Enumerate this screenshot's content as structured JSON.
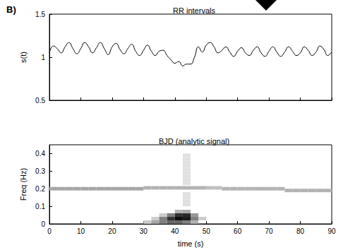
{
  "panel_label": "B)",
  "chart_data": [
    {
      "type": "line",
      "title": "RR intervals",
      "y_label": "s(t)",
      "color": "#000000",
      "x": [
        0,
        1.25,
        2.5,
        3.75,
        5,
        6.25,
        7.5,
        8.75,
        10,
        11.25,
        12.5,
        13.75,
        15,
        16.25,
        17.5,
        18.75,
        20,
        21.25,
        22.5,
        23.75,
        25,
        26.25,
        27.5,
        28.75,
        30,
        31.25,
        32.5,
        33.75,
        35,
        36.25,
        37.5,
        38.75,
        40,
        41.25,
        42.5,
        43.75,
        45,
        46.25,
        47.5,
        48.75,
        50,
        51.25,
        52.5,
        53.75,
        55,
        56.25,
        57.5,
        58.75,
        60,
        61.25,
        62.5,
        63.75,
        65,
        66.25,
        67.5,
        68.75,
        70,
        71.25,
        72.5,
        73.75,
        75,
        76.25,
        77.5,
        78.75,
        80,
        81.25,
        82.5,
        83.75,
        85,
        86.25,
        87.5,
        88.75,
        90
      ],
      "values": [
        1.05,
        1.13,
        1.1,
        1.05,
        1.12,
        1.17,
        1.1,
        1.04,
        1.1,
        1.17,
        1.12,
        1.05,
        1.11,
        1.17,
        1.1,
        1.03,
        1.12,
        1.16,
        1.09,
        1.04,
        1.1,
        1.15,
        1.07,
        1.02,
        1.08,
        1.14,
        1.07,
        1.02,
        1.07,
        1.08,
        1.02,
        0.97,
        0.93,
        0.95,
        0.9,
        0.92,
        0.92,
        1.0,
        1.12,
        1.06,
        1.14,
        1.17,
        1.12,
        1.05,
        1.08,
        1.12,
        1.06,
        1.01,
        1.07,
        1.11,
        1.05,
        1.02,
        1.08,
        1.12,
        1.05,
        1.01,
        1.07,
        1.12,
        1.06,
        1.01,
        1.06,
        1.12,
        1.07,
        1.02,
        1.05,
        1.12,
        1.08,
        1.02,
        1.06,
        1.13,
        1.09,
        1.02,
        1.06
      ],
      "xlim": [
        0,
        90
      ],
      "xticks": [
        0,
        10,
        20,
        30,
        40,
        50,
        60,
        70,
        80,
        90
      ],
      "ylim": [
        0.5,
        1.5
      ],
      "yticks": [
        0.5,
        1,
        1.5
      ],
      "tick_labels": "y"
    },
    {
      "type": "heatmap",
      "title": "BJD (analytic signal)",
      "x_label": "time (s)",
      "y_label": "Freq (Hz)",
      "xlim": [
        0,
        90
      ],
      "xticks": [
        0,
        10,
        20,
        30,
        40,
        50,
        60,
        70,
        80,
        90
      ],
      "ylim": [
        0,
        0.45
      ],
      "yticks": [
        0,
        0.1,
        0.2,
        0.3,
        0.4
      ],
      "cell_width": 2.5,
      "cell_height": 0.02,
      "value_range": [
        0,
        1
      ],
      "cells": [
        [
          1.25,
          0.2,
          0.35
        ],
        [
          3.75,
          0.2,
          0.35
        ],
        [
          6.25,
          0.2,
          0.35
        ],
        [
          8.75,
          0.2,
          0.35
        ],
        [
          11.25,
          0.2,
          0.35
        ],
        [
          13.75,
          0.2,
          0.35
        ],
        [
          16.25,
          0.2,
          0.35
        ],
        [
          18.75,
          0.2,
          0.35
        ],
        [
          21.25,
          0.2,
          0.35
        ],
        [
          23.75,
          0.2,
          0.35
        ],
        [
          26.25,
          0.2,
          0.35
        ],
        [
          28.75,
          0.2,
          0.35
        ],
        [
          31.25,
          0.205,
          0.3
        ],
        [
          33.75,
          0.205,
          0.3
        ],
        [
          36.25,
          0.205,
          0.3
        ],
        [
          38.75,
          0.205,
          0.3
        ],
        [
          41.25,
          0.205,
          0.3
        ],
        [
          43.75,
          0.205,
          0.3
        ],
        [
          46.25,
          0.205,
          0.3
        ],
        [
          48.75,
          0.205,
          0.3
        ],
        [
          51.25,
          0.205,
          0.25
        ],
        [
          53.75,
          0.205,
          0.25
        ],
        [
          56.25,
          0.2,
          0.3
        ],
        [
          58.75,
          0.2,
          0.3
        ],
        [
          61.25,
          0.2,
          0.3
        ],
        [
          63.75,
          0.2,
          0.3
        ],
        [
          66.25,
          0.2,
          0.3
        ],
        [
          68.75,
          0.2,
          0.3
        ],
        [
          71.25,
          0.2,
          0.3
        ],
        [
          73.75,
          0.2,
          0.3
        ],
        [
          76.25,
          0.19,
          0.3
        ],
        [
          78.75,
          0.19,
          0.3
        ],
        [
          81.25,
          0.19,
          0.3
        ],
        [
          83.75,
          0.19,
          0.3
        ],
        [
          86.25,
          0.19,
          0.3
        ],
        [
          88.75,
          0.19,
          0.3
        ],
        [
          43.75,
          0.11,
          0.12
        ],
        [
          43.75,
          0.13,
          0.12
        ],
        [
          43.75,
          0.15,
          0.12
        ],
        [
          43.75,
          0.17,
          0.12
        ],
        [
          43.75,
          0.23,
          0.12
        ],
        [
          43.75,
          0.25,
          0.12
        ],
        [
          43.75,
          0.27,
          0.12
        ],
        [
          43.75,
          0.29,
          0.12
        ],
        [
          43.75,
          0.31,
          0.12
        ],
        [
          43.75,
          0.33,
          0.12
        ],
        [
          43.75,
          0.35,
          0.12
        ],
        [
          43.75,
          0.37,
          0.12
        ],
        [
          43.75,
          0.39,
          0.12
        ],
        [
          31.25,
          0.01,
          0.2
        ],
        [
          33.75,
          0.01,
          0.35
        ],
        [
          33.75,
          0.03,
          0.2
        ],
        [
          36.25,
          0.01,
          0.5
        ],
        [
          36.25,
          0.03,
          0.5
        ],
        [
          36.25,
          0.05,
          0.2
        ],
        [
          38.75,
          0.01,
          0.6
        ],
        [
          38.75,
          0.03,
          0.8
        ],
        [
          38.75,
          0.05,
          0.5
        ],
        [
          41.25,
          0.01,
          0.6
        ],
        [
          41.25,
          0.03,
          0.95
        ],
        [
          41.25,
          0.05,
          0.8
        ],
        [
          41.25,
          0.07,
          0.3
        ],
        [
          43.75,
          0.01,
          0.5
        ],
        [
          43.75,
          0.03,
          0.9
        ],
        [
          43.75,
          0.05,
          0.85
        ],
        [
          43.75,
          0.07,
          0.35
        ],
        [
          46.25,
          0.01,
          0.3
        ],
        [
          46.25,
          0.03,
          0.5
        ],
        [
          46.25,
          0.05,
          0.4
        ],
        [
          48.75,
          0.03,
          0.2
        ]
      ]
    }
  ]
}
